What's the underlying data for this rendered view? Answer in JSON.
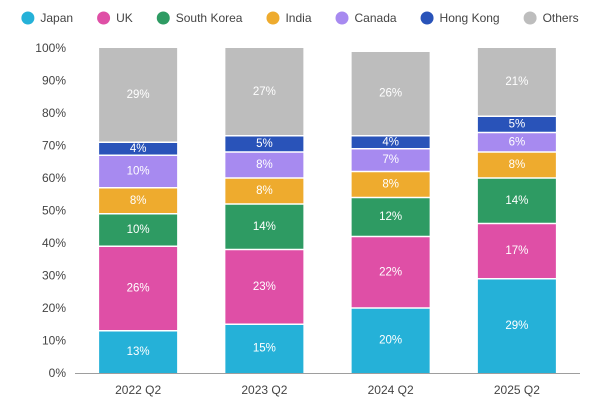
{
  "chart_data": {
    "type": "bar",
    "stacked": true,
    "categories": [
      "2022 Q2",
      "2023 Q2",
      "2024 Q2",
      "2025 Q2"
    ],
    "series": [
      {
        "name": "Japan",
        "color": "#25b1d8",
        "values": [
          13,
          15,
          20,
          29
        ],
        "labels": [
          "13%",
          "15%",
          "20%",
          "29%"
        ]
      },
      {
        "name": "UK",
        "color": "#df4fa6",
        "values": [
          26,
          23,
          22,
          17
        ],
        "labels": [
          "26%",
          "23%",
          "22%",
          "17%"
        ]
      },
      {
        "name": "South Korea",
        "color": "#2e9b63",
        "values": [
          10,
          14,
          12,
          14
        ],
        "labels": [
          "10%",
          "14%",
          "12%",
          "14%"
        ]
      },
      {
        "name": "India",
        "color": "#eeab2e",
        "values": [
          8,
          8,
          8,
          8
        ],
        "labels": [
          "8%",
          "8%",
          "8%",
          "8%"
        ]
      },
      {
        "name": "Canada",
        "color": "#a78af0",
        "values": [
          10,
          8,
          7,
          6
        ],
        "labels": [
          "10%",
          "8%",
          "7%",
          "6%"
        ]
      },
      {
        "name": "Hong Kong",
        "color": "#2953b9",
        "values": [
          4,
          5,
          4,
          5
        ],
        "labels": [
          "4%",
          "5%",
          "4%",
          "5%"
        ]
      },
      {
        "name": "Others",
        "color": "#bdbdbd",
        "values": [
          29,
          27,
          26,
          21
        ],
        "labels": [
          "29%",
          "27%",
          "26%",
          "21%"
        ]
      }
    ],
    "ylim": [
      0,
      100
    ],
    "y_ticks": [
      "0%",
      "10%",
      "20%",
      "30%",
      "40%",
      "50%",
      "60%",
      "70%",
      "80%",
      "90%",
      "100%"
    ],
    "legend": "top",
    "grid": false
  }
}
